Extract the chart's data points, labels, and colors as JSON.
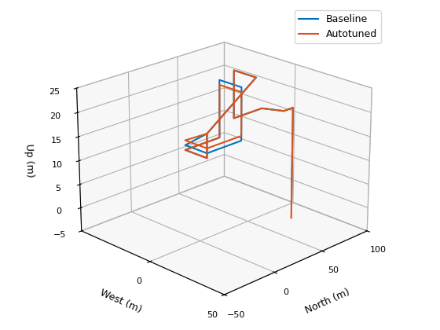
{
  "xlabel": "North (m)",
  "ylabel": "West (m)",
  "zlabel": "Up (m)",
  "xlim": [
    -50,
    100
  ],
  "ylim": [
    50,
    -50
  ],
  "zlim": [
    -5,
    25
  ],
  "xticks": [
    -50,
    0,
    50,
    100
  ],
  "yticks": [
    50,
    0
  ],
  "zticks": [
    -5,
    0,
    5,
    10,
    15,
    20,
    25
  ],
  "baseline_color": "#0072BD",
  "autotuned_color": "#D95319",
  "legend_labels": [
    "Baseline",
    "Autotuned"
  ],
  "elev": 22,
  "azim": -135,
  "background_color": "#ffffff",
  "linewidth": 1.5,
  "baseline_N": [
    0,
    0,
    0,
    0,
    35,
    35,
    35,
    35,
    0,
    0,
    50,
    50,
    50,
    50,
    80,
    80,
    80,
    90,
    90
  ],
  "baseline_W": [
    5,
    5,
    5,
    -10,
    -10,
    -10,
    5,
    5,
    5,
    5,
    5,
    5,
    -10,
    -10,
    -10,
    5,
    5,
    5,
    5
  ],
  "baseline_U": [
    18,
    13,
    13,
    13,
    13,
    25,
    25,
    14,
    14,
    18,
    26,
    26,
    26,
    16,
    16,
    17,
    17,
    17,
    -3
  ],
  "autotuned_N": [
    0,
    0,
    0,
    0,
    35,
    35,
    35,
    35,
    0,
    0,
    50,
    50,
    50,
    50,
    80,
    80,
    80,
    90,
    90
  ],
  "autotuned_W": [
    5,
    5,
    5,
    -10,
    -10,
    -10,
    5,
    5,
    5,
    5,
    5,
    5,
    -10,
    -10,
    -10,
    5,
    5,
    5,
    5
  ],
  "autotuned_U": [
    18,
    13,
    13,
    13,
    13,
    24,
    24,
    15,
    15,
    18,
    26,
    26,
    26,
    16,
    16,
    17,
    17,
    17,
    -7
  ]
}
